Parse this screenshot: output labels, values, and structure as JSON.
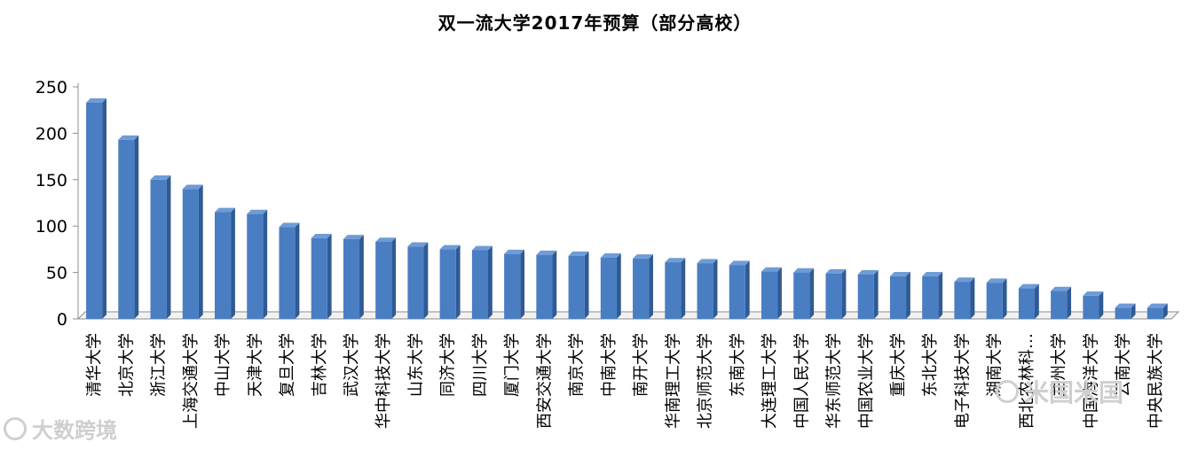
{
  "chart_data": {
    "type": "bar",
    "title": "双一流大学2017年预算（部分高校）",
    "xlabel": "",
    "ylabel": "",
    "ylim": [
      0,
      250
    ],
    "yticks": [
      0,
      50,
      100,
      150,
      200,
      250
    ],
    "grid": false,
    "legend": "none",
    "bar_color": "#4a7ec3",
    "categories": [
      "清华大学",
      "北京大学",
      "浙江大学",
      "上海交通大学",
      "中山大学",
      "天津大学",
      "复旦大学",
      "吉林大学",
      "武汉大学",
      "华中科技大学",
      "山东大学",
      "同济大学",
      "四川大学",
      "厦门大学",
      "西安交通大学",
      "南京大学",
      "中南大学",
      "南开大学",
      "华南理工大学",
      "北京师范大学",
      "东南大学",
      "大连理工大学",
      "中国人民大学",
      "华东师范大学",
      "中国农业大学",
      "重庆大学",
      "东北大学",
      "电子科技大学",
      "湖南大学",
      "西北农林科…",
      "兰州大学",
      "中国海洋大学",
      "云南大学",
      "中央民族大学"
    ],
    "values": [
      233,
      193,
      150,
      140,
      115,
      113,
      99,
      87,
      86,
      83,
      78,
      75,
      74,
      70,
      69,
      68,
      66,
      65,
      61,
      60,
      58,
      51,
      50,
      49,
      48,
      46,
      46,
      40,
      39,
      33,
      30,
      25,
      12,
      12
    ]
  },
  "watermarks": {
    "left": "大数跨境",
    "right": "米国米国"
  }
}
